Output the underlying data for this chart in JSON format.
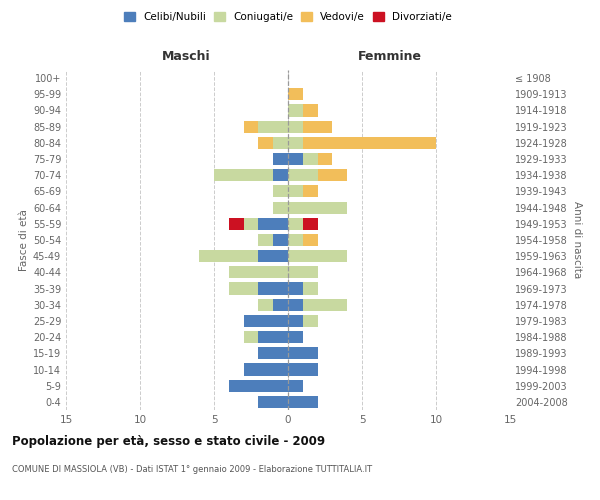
{
  "age_groups": [
    "0-4",
    "5-9",
    "10-14",
    "15-19",
    "20-24",
    "25-29",
    "30-34",
    "35-39",
    "40-44",
    "45-49",
    "50-54",
    "55-59",
    "60-64",
    "65-69",
    "70-74",
    "75-79",
    "80-84",
    "85-89",
    "90-94",
    "95-99",
    "100+"
  ],
  "birth_years": [
    "2004-2008",
    "1999-2003",
    "1994-1998",
    "1989-1993",
    "1984-1988",
    "1979-1983",
    "1974-1978",
    "1969-1973",
    "1964-1968",
    "1959-1963",
    "1954-1958",
    "1949-1953",
    "1944-1948",
    "1939-1943",
    "1934-1938",
    "1929-1933",
    "1924-1928",
    "1919-1923",
    "1914-1918",
    "1909-1913",
    "≤ 1908"
  ],
  "colors": {
    "celibi": "#4D7EBB",
    "coniugati": "#C8D9A0",
    "vedovi": "#F2BE5A",
    "divorziati": "#CC1122"
  },
  "maschi": {
    "celibi": [
      2,
      4,
      3,
      2,
      2,
      3,
      1,
      2,
      0,
      2,
      1,
      2,
      0,
      0,
      1,
      1,
      0,
      0,
      0,
      0,
      0
    ],
    "coniugati": [
      0,
      0,
      0,
      0,
      1,
      0,
      1,
      2,
      4,
      4,
      1,
      1,
      1,
      1,
      4,
      0,
      1,
      2,
      0,
      0,
      0
    ],
    "vedovi": [
      0,
      0,
      0,
      0,
      0,
      0,
      0,
      0,
      0,
      0,
      0,
      0,
      0,
      0,
      0,
      0,
      1,
      1,
      0,
      0,
      0
    ],
    "divorziati": [
      0,
      0,
      0,
      0,
      0,
      0,
      0,
      0,
      0,
      0,
      0,
      1,
      0,
      0,
      0,
      0,
      0,
      0,
      0,
      0,
      0
    ]
  },
  "femmine": {
    "nubili": [
      2,
      1,
      2,
      2,
      1,
      1,
      1,
      1,
      0,
      0,
      0,
      0,
      0,
      0,
      0,
      1,
      0,
      0,
      0,
      0,
      0
    ],
    "coniugate": [
      0,
      0,
      0,
      0,
      0,
      1,
      3,
      1,
      2,
      4,
      1,
      1,
      4,
      1,
      2,
      1,
      1,
      1,
      1,
      0,
      0
    ],
    "vedove": [
      0,
      0,
      0,
      0,
      0,
      0,
      0,
      0,
      0,
      0,
      1,
      0,
      0,
      1,
      2,
      1,
      9,
      2,
      1,
      1,
      0
    ],
    "divorziate": [
      0,
      0,
      0,
      0,
      0,
      0,
      0,
      0,
      0,
      0,
      0,
      1,
      0,
      0,
      0,
      0,
      0,
      0,
      0,
      0,
      0
    ]
  },
  "xlim": 15,
  "title": "Popolazione per età, sesso e stato civile - 2009",
  "subtitle": "COMUNE DI MASSIOLA (VB) - Dati ISTAT 1° gennaio 2009 - Elaborazione TUTTITALIA.IT",
  "xlabel_left": "Maschi",
  "xlabel_right": "Femmine",
  "ylabel_left": "Fasce di età",
  "ylabel_right": "Anni di nascita",
  "legend_labels": [
    "Celibi/Nubili",
    "Coniugati/e",
    "Vedovi/e",
    "Divorziati/e"
  ],
  "bg_color": "#ffffff",
  "grid_color": "#cccccc"
}
